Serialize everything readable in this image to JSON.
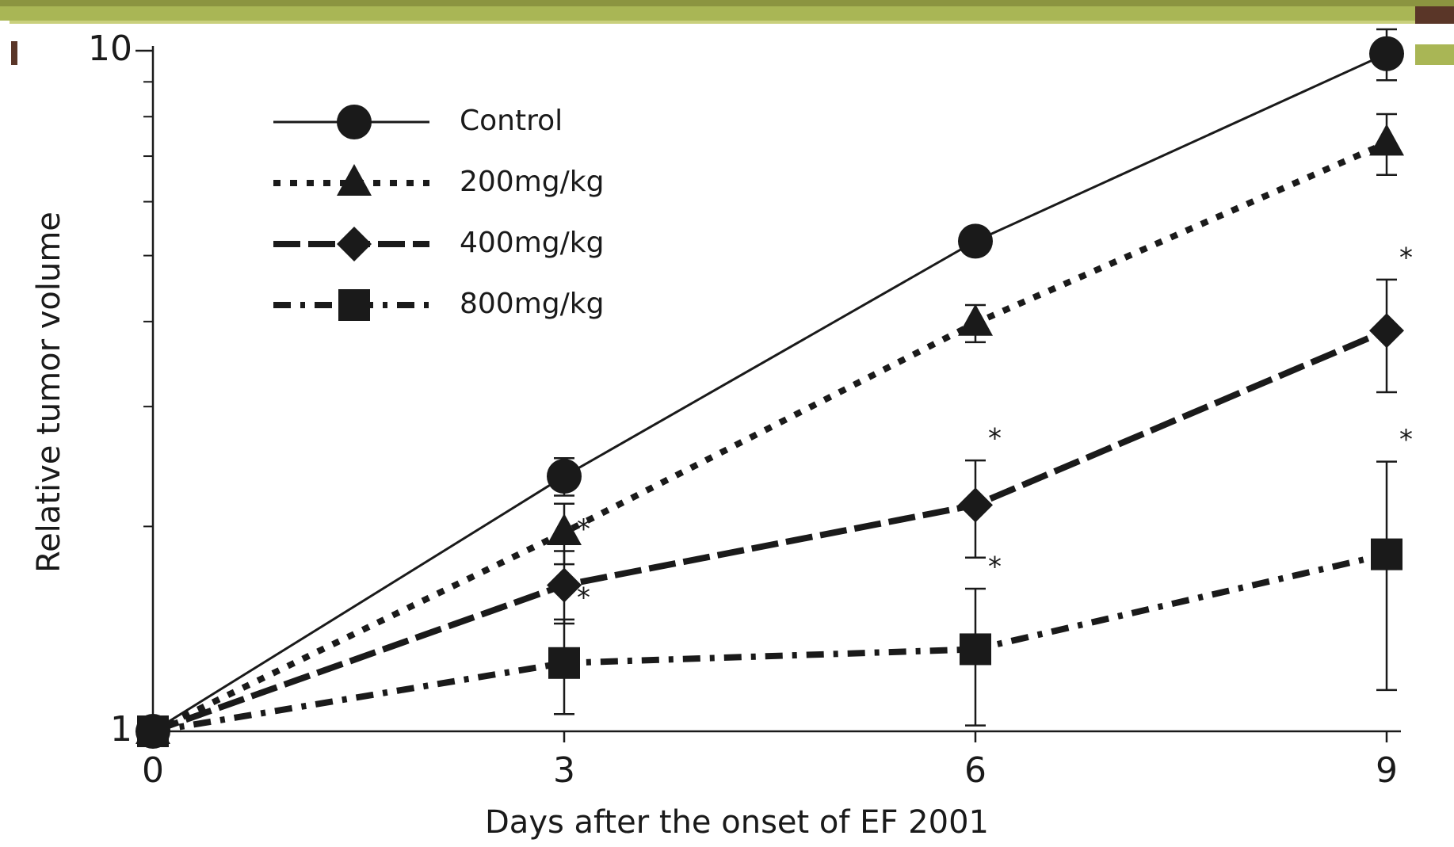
{
  "chart_data": {
    "type": "line",
    "xlabel": "Days after the onset of  EF 2001",
    "ylabel": "Relative tumor volume",
    "x": [
      0,
      3,
      6,
      9
    ],
    "xlim": [
      0,
      9
    ],
    "xticks": [
      0,
      3,
      6,
      9
    ],
    "ylim": [
      1,
      10
    ],
    "yticks": [
      1,
      10
    ],
    "yminorticks": [
      2,
      3,
      4,
      5,
      6,
      7,
      8,
      9
    ],
    "yscale": "log",
    "legend": "top-left",
    "series": [
      {
        "name": "Control",
        "color": "#1a1a1a",
        "line": "solid",
        "marker": "circle",
        "values": [
          1,
          2.37,
          5.25,
          9.9
        ],
        "errors": [
          0,
          0.15,
          0.1,
          0.85
        ],
        "significance": [
          null,
          null,
          null,
          null
        ]
      },
      {
        "name": "200mg/kg",
        "color": "#1a1a1a",
        "line": "dotted",
        "marker": "triangle",
        "values": [
          1,
          1.96,
          3.98,
          7.32
        ],
        "errors": [
          0,
          0.2,
          0.25,
          0.75
        ],
        "significance": [
          null,
          null,
          null,
          null
        ]
      },
      {
        "name": "400mg/kg",
        "color": "#1a1a1a",
        "line": "dashed",
        "marker": "diamond",
        "values": [
          1,
          1.64,
          2.15,
          3.88
        ],
        "errors": [
          0,
          0.2,
          0.35,
          0.73
        ],
        "significance": [
          null,
          "*",
          "*",
          "*"
        ]
      },
      {
        "name": "800mg/kg",
        "color": "#1a1a1a",
        "line": "dashdot",
        "marker": "square",
        "values": [
          1,
          1.26,
          1.32,
          1.82
        ],
        "errors": [
          0,
          0.2,
          0.3,
          0.67
        ],
        "significance": [
          null,
          "*",
          "*",
          "*"
        ]
      }
    ]
  }
}
